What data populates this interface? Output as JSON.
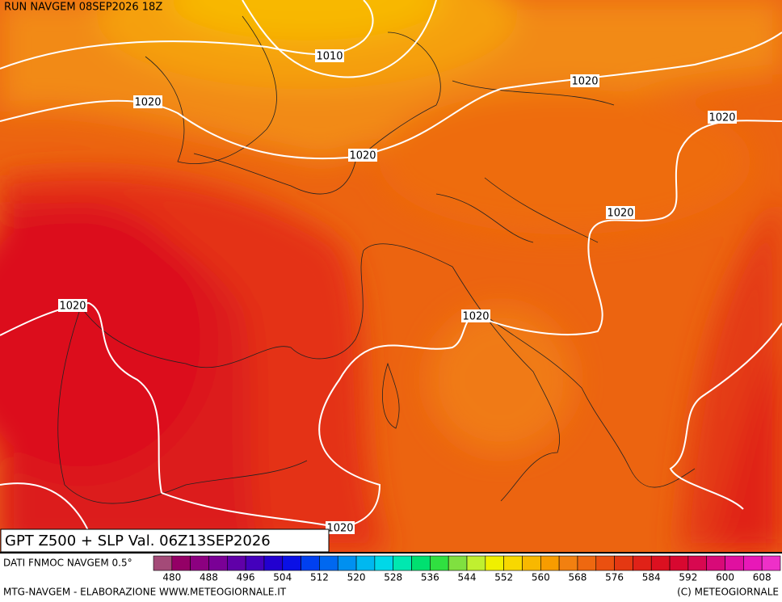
{
  "header": "RUN NAVGEM 08SEP2026 18Z",
  "isobar_labels": [
    "1010",
    "1020",
    "1020",
    "1020",
    "1020",
    "1020",
    "1020",
    "1020",
    "1020"
  ],
  "title": "GPT Z500 + SLP Val. 06Z13SEP2026",
  "source": "DATI FNMOC NAVGEM 0.5°",
  "colorbar": {
    "labels": [
      480,
      488,
      496,
      504,
      512,
      520,
      528,
      536,
      544,
      552,
      560,
      568,
      576,
      584,
      592,
      600,
      608
    ],
    "colors": [
      "#a44a78",
      "#940066",
      "#8c0080",
      "#7a0096",
      "#6000a8",
      "#4400bc",
      "#2200d0",
      "#0a10e6",
      "#0040f0",
      "#0068f0",
      "#0090f0",
      "#00b8f0",
      "#00d8e8",
      "#00e8b0",
      "#00e070",
      "#30e040",
      "#80e040",
      "#c0f030",
      "#f0f000",
      "#f8d800",
      "#f8b800",
      "#f89c00",
      "#f28010",
      "#ee6810",
      "#ea5010",
      "#e43812",
      "#e02218",
      "#dc1020",
      "#d80830",
      "#d80850",
      "#d80a78",
      "#e010a0",
      "#e818b8",
      "#ee30c8"
    ]
  },
  "footer_left": "MTG-NAVGEM - ELABORAZIONE WWW.METEOGIORNALE.IT",
  "footer_right": "(C) METEOGIORNALE"
}
